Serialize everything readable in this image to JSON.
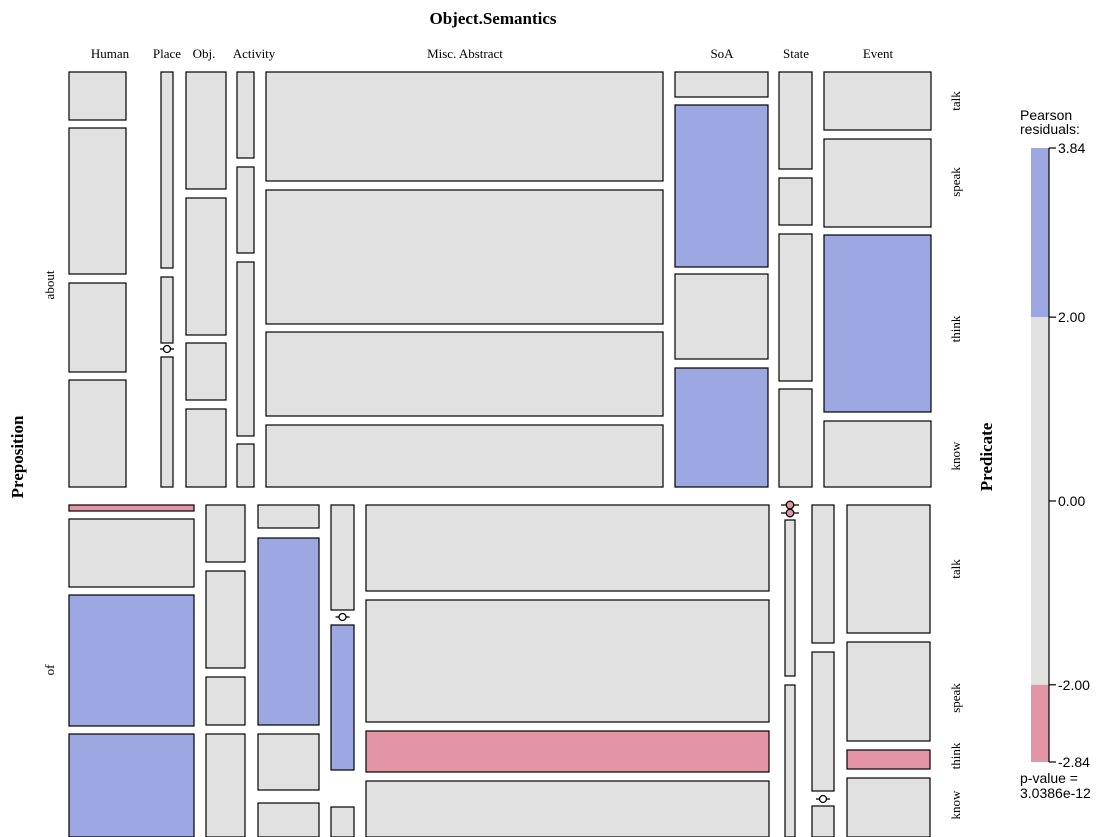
{
  "chart_data": {
    "type": "mosaic",
    "title": "Object.Semantics",
    "row_variable": "Preposition",
    "col_variable": "Object.Semantics",
    "inner_variable": "Predicate",
    "column_categories": [
      "Human",
      "Place",
      "Obj.",
      "Activity",
      "Misc. Abstract",
      "SoA",
      "State",
      "Event"
    ],
    "row_categories": [
      "about",
      "of"
    ],
    "predicate_categories": [
      "talk",
      "speak",
      "think",
      "know"
    ],
    "shading": {
      "positive_color": "#9da8e2",
      "neutral_color": "#e1e1e1",
      "negative_color": "#e495a5",
      "thresholds": [
        2,
        -2
      ]
    },
    "legend": {
      "title_line1": "Pearson",
      "title_line2": "residuals:",
      "tick_labels": [
        "3.84",
        "2.00",
        "0.00",
        "-2.00",
        "-2.84"
      ],
      "range": [
        -2.84,
        3.84
      ],
      "p_value_line1": "p-value =",
      "p_value_line2": "3.0386e-12"
    },
    "about": {
      "Human": {
        "talk": "neutral",
        "speak": "neutral",
        "think": "neutral",
        "know": "neutral"
      },
      "Place": {
        "talk": "neutral",
        "speak": "neutral",
        "think": "empty",
        "know": "neutral"
      },
      "Obj.": {
        "talk": "neutral",
        "speak": "neutral",
        "think": "neutral",
        "know": "neutral"
      },
      "Activity": {
        "talk": "neutral",
        "speak": "neutral",
        "think": "neutral",
        "know": "neutral"
      },
      "Misc. Abstract": {
        "talk": "neutral",
        "speak": "neutral",
        "think": "neutral",
        "know": "neutral"
      },
      "SoA": {
        "talk": "neutral",
        "speak": "positive",
        "think": "neutral",
        "know": "positive"
      },
      "State": {
        "talk": "neutral",
        "speak": "neutral",
        "think": "neutral",
        "know": "neutral"
      },
      "Event": {
        "talk": "neutral",
        "speak": "neutral",
        "think": "positive",
        "know": "neutral"
      }
    },
    "of": {
      "Human": {
        "talk": "negative",
        "speak": "neutral",
        "think": "positive",
        "know": "positive"
      },
      "Place": {
        "talk": "neutral",
        "speak": "neutral",
        "think": "neutral",
        "know": "neutral"
      },
      "Obj.": {
        "talk": "neutral",
        "speak": "positive",
        "think": "neutral",
        "know": "neutral"
      },
      "Activity": {
        "talk": "neutral",
        "speak": "empty",
        "think": "positive",
        "know": "neutral"
      },
      "Misc. Abstract": {
        "talk": "neutral",
        "speak": "neutral",
        "think": "negative",
        "know": "neutral"
      },
      "SoA": {
        "talk": "negative",
        "speak": "negative",
        "think": "neutral",
        "know": "neutral"
      },
      "State": {
        "talk": "neutral",
        "speak": "neutral",
        "think": "empty",
        "know": "neutral"
      },
      "Event": {
        "talk": "neutral",
        "speak": "neutral",
        "think": "negative",
        "know": "neutral"
      }
    }
  }
}
